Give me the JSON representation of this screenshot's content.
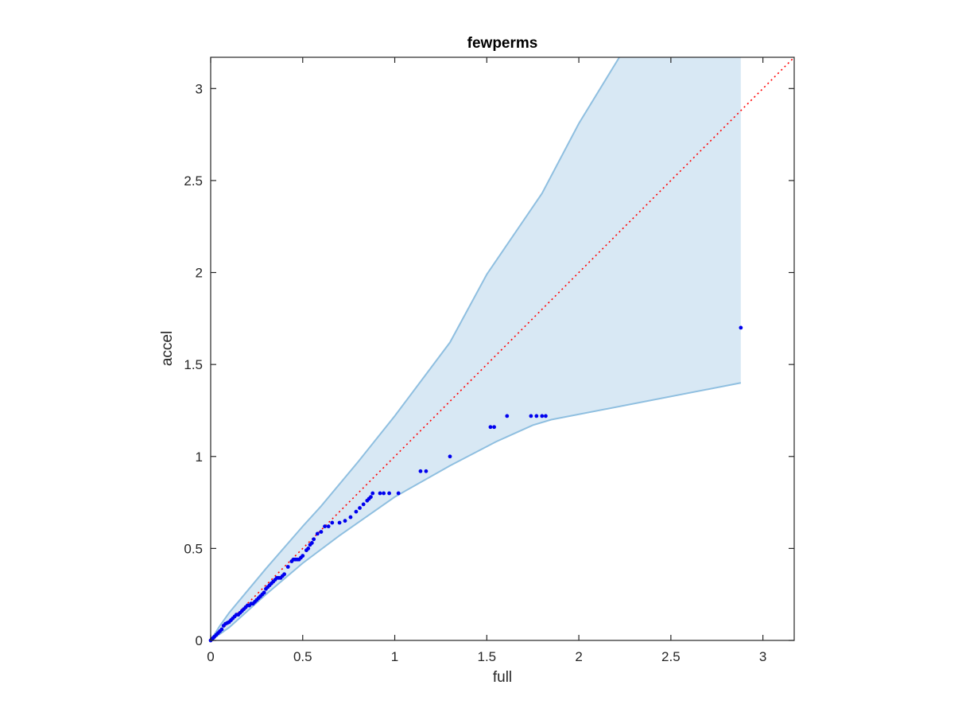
{
  "chart_data": {
    "type": "scatter",
    "title": "fewperms",
    "xlabel": "full",
    "ylabel": "accel",
    "xlim": [
      0,
      3.17
    ],
    "ylim": [
      0,
      3.17
    ],
    "xticks": [
      0,
      0.5,
      1,
      1.5,
      2,
      2.5,
      3
    ],
    "xtick_labels": [
      "0",
      "0.5",
      "1",
      "1.5",
      "2",
      "2.5",
      "3"
    ],
    "yticks": [
      0,
      0.5,
      1,
      1.5,
      2,
      2.5,
      3
    ],
    "ytick_labels": [
      "0",
      "0.5",
      "1",
      "1.5",
      "2",
      "2.5",
      "3"
    ],
    "grid": false,
    "colors": {
      "points": "#0000ee",
      "band_fill": "#d8e8f4",
      "band_edge": "#8fbfe0",
      "reference_line": "#ff0000",
      "axes": "#262626"
    },
    "reference_line": {
      "x": [
        0,
        3.17
      ],
      "y": [
        0,
        3.17
      ],
      "style": "dotted"
    },
    "confidence_band": {
      "upper": {
        "x": [
          0,
          0.05,
          0.1,
          0.2,
          0.3,
          0.5,
          0.6,
          0.8,
          1.0,
          1.3,
          1.5,
          1.8,
          2.0,
          2.22
        ],
        "y": [
          0,
          0.08,
          0.15,
          0.27,
          0.39,
          0.62,
          0.73,
          0.97,
          1.22,
          1.62,
          1.99,
          2.43,
          2.81,
          3.17
        ]
      },
      "right_edge_x": 2.88,
      "lower": {
        "x": [
          0,
          0.1,
          0.3,
          0.5,
          0.7,
          1.0,
          1.3,
          1.55,
          1.75,
          1.85,
          2.88
        ],
        "y": [
          0,
          0.07,
          0.25,
          0.42,
          0.57,
          0.78,
          0.95,
          1.08,
          1.17,
          1.2,
          1.4
        ]
      }
    },
    "points": {
      "x": [
        0,
        0.005,
        0.01,
        0.015,
        0.02,
        0.03,
        0.04,
        0.05,
        0.06,
        0.07,
        0.08,
        0.09,
        0.1,
        0.11,
        0.12,
        0.13,
        0.14,
        0.15,
        0.16,
        0.17,
        0.18,
        0.19,
        0.2,
        0.21,
        0.22,
        0.23,
        0.24,
        0.25,
        0.26,
        0.27,
        0.28,
        0.29,
        0.3,
        0.31,
        0.32,
        0.33,
        0.34,
        0.35,
        0.36,
        0.37,
        0.38,
        0.39,
        0.4,
        0.42,
        0.44,
        0.45,
        0.46,
        0.47,
        0.48,
        0.49,
        0.5,
        0.52,
        0.53,
        0.54,
        0.55,
        0.56,
        0.58,
        0.6,
        0.62,
        0.64,
        0.66,
        0.7,
        0.73,
        0.76,
        0.79,
        0.81,
        0.83,
        0.85,
        0.86,
        0.87,
        0.88,
        0.92,
        0.94,
        0.97,
        1.02,
        1.14,
        1.17,
        1.3,
        1.52,
        1.54,
        1.61,
        1.74,
        1.77,
        1.8,
        1.82,
        2.88
      ],
      "y": [
        0,
        0.005,
        0.01,
        0.015,
        0.02,
        0.03,
        0.04,
        0.05,
        0.06,
        0.08,
        0.09,
        0.095,
        0.1,
        0.11,
        0.12,
        0.13,
        0.14,
        0.14,
        0.15,
        0.16,
        0.17,
        0.18,
        0.19,
        0.19,
        0.2,
        0.2,
        0.21,
        0.22,
        0.23,
        0.24,
        0.25,
        0.26,
        0.28,
        0.29,
        0.3,
        0.31,
        0.32,
        0.33,
        0.34,
        0.34,
        0.34,
        0.35,
        0.36,
        0.4,
        0.43,
        0.44,
        0.44,
        0.44,
        0.44,
        0.45,
        0.46,
        0.49,
        0.5,
        0.52,
        0.53,
        0.55,
        0.58,
        0.59,
        0.62,
        0.62,
        0.64,
        0.64,
        0.65,
        0.67,
        0.7,
        0.72,
        0.74,
        0.76,
        0.77,
        0.78,
        0.8,
        0.8,
        0.8,
        0.8,
        0.8,
        0.92,
        0.92,
        1.0,
        1.16,
        1.16,
        1.22,
        1.22,
        1.22,
        1.22,
        1.22,
        1.7
      ]
    }
  }
}
